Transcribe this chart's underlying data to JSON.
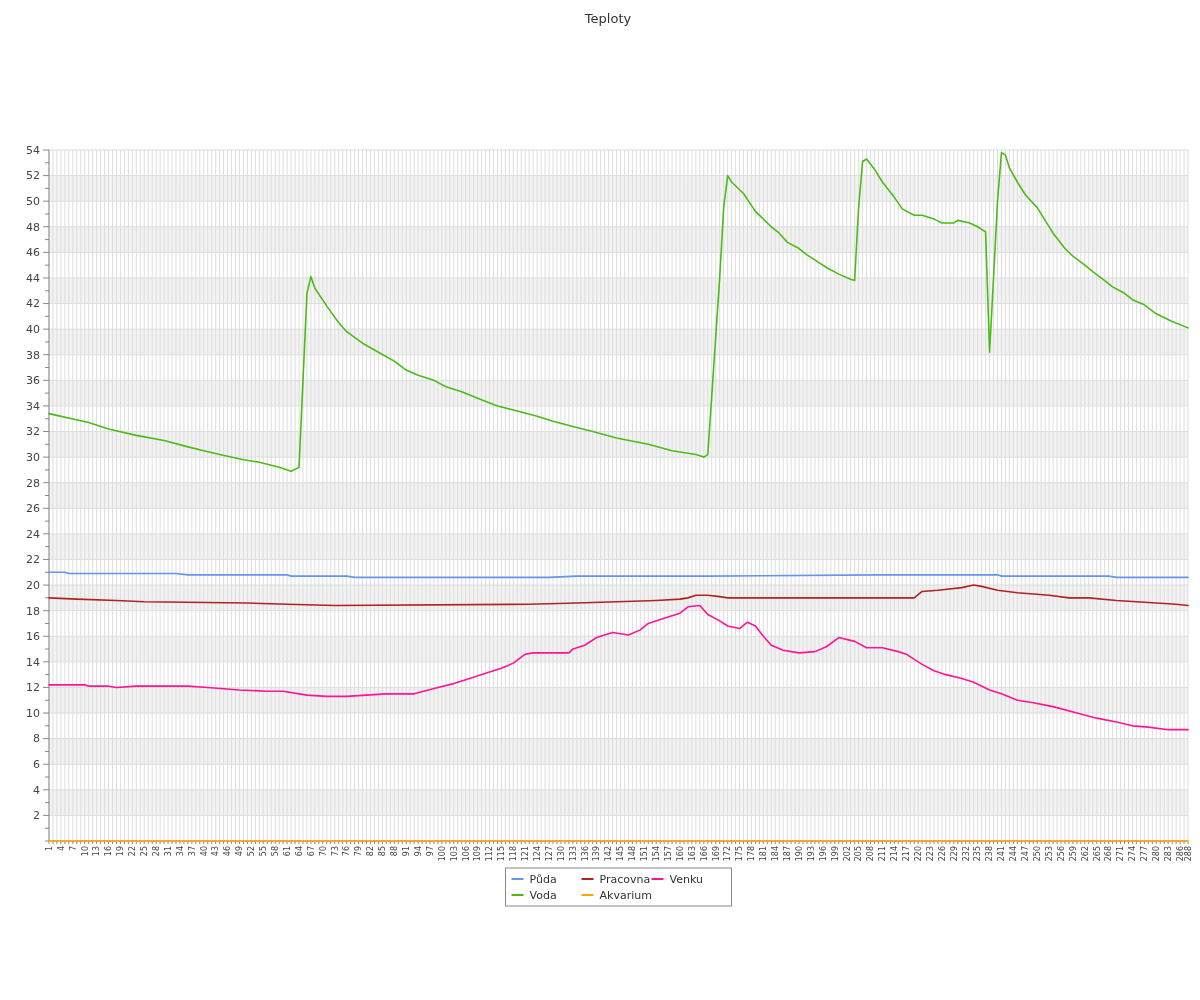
{
  "chart_data": {
    "type": "line",
    "title": "Teploty",
    "grid": true,
    "legend": "bottom",
    "xlim": [
      1,
      288
    ],
    "xticks": [
      1,
      {
        "value": 2,
        "label": null
      },
      {
        "value": 3,
        "label": null
      },
      4,
      {
        "value": 5,
        "label": null
      },
      {
        "value": 6,
        "label": null
      },
      7,
      {
        "value": 8,
        "label": null
      },
      {
        "value": 9,
        "label": null
      },
      10,
      {
        "value": 11,
        "label": null
      },
      {
        "value": 12,
        "label": null
      },
      13,
      {
        "value": 14,
        "label": null
      },
      {
        "value": 15,
        "label": null
      },
      16,
      {
        "value": 17,
        "label": null
      },
      {
        "value": 18,
        "label": null
      },
      19,
      {
        "value": 20,
        "label": null
      },
      {
        "value": 21,
        "label": null
      },
      22,
      {
        "value": 23,
        "label": null
      },
      {
        "value": 24,
        "label": null
      },
      25,
      {
        "value": 26,
        "label": null
      },
      {
        "value": 27,
        "label": null
      },
      28,
      {
        "value": 29,
        "label": null
      },
      {
        "value": 30,
        "label": null
      },
      31,
      {
        "value": 32,
        "label": null
      },
      {
        "value": 33,
        "label": null
      },
      34,
      {
        "value": 35,
        "label": null
      },
      {
        "value": 36,
        "label": null
      },
      37,
      {
        "value": 38,
        "label": null
      },
      {
        "value": 39,
        "label": null
      },
      40,
      {
        "value": 41,
        "label": null
      },
      {
        "value": 42,
        "label": null
      },
      43,
      {
        "value": 44,
        "label": null
      },
      {
        "value": 45,
        "label": null
      },
      46,
      {
        "value": 47,
        "label": null
      },
      {
        "value": 48,
        "label": null
      },
      49,
      {
        "value": 50,
        "label": null
      },
      {
        "value": 51,
        "label": null
      },
      52,
      {
        "value": 53,
        "label": null
      },
      {
        "value": 54,
        "label": null
      },
      55,
      {
        "value": 56,
        "label": null
      },
      {
        "value": 57,
        "label": null
      },
      58,
      {
        "value": 59,
        "label": null
      },
      {
        "value": 60,
        "label": null
      },
      61,
      {
        "value": 62,
        "label": null
      },
      {
        "value": 63,
        "label": null
      },
      64,
      {
        "value": 65,
        "label": null
      },
      {
        "value": 66,
        "label": null
      },
      67,
      {
        "value": 68,
        "label": null
      },
      {
        "value": 69,
        "label": null
      },
      70,
      {
        "value": 71,
        "label": null
      },
      {
        "value": 72,
        "label": null
      },
      73,
      {
        "value": 74,
        "label": null
      },
      {
        "value": 75,
        "label": null
      },
      76,
      {
        "value": 77,
        "label": null
      },
      {
        "value": 78,
        "label": null
      },
      79,
      {
        "value": 80,
        "label": null
      },
      {
        "value": 81,
        "label": null
      },
      82,
      {
        "value": 83,
        "label": null
      },
      {
        "value": 84,
        "label": null
      },
      85,
      {
        "value": 86,
        "label": null
      },
      {
        "value": 87,
        "label": null
      },
      88,
      {
        "value": 89,
        "label": null
      },
      {
        "value": 90,
        "label": null
      },
      91,
      {
        "value": 92,
        "label": null
      },
      {
        "value": 93,
        "label": null
      },
      94,
      {
        "value": 95,
        "label": null
      },
      {
        "value": 96,
        "label": null
      },
      97,
      {
        "value": 98,
        "label": null
      },
      {
        "value": 99,
        "label": null
      },
      100,
      {
        "value": 101,
        "label": null
      },
      {
        "value": 102,
        "label": null
      },
      103,
      {
        "value": 104,
        "label": null
      },
      {
        "value": 105,
        "label": null
      },
      106,
      {
        "value": 107,
        "label": null
      },
      {
        "value": 108,
        "label": null
      },
      109,
      {
        "value": 110,
        "label": null
      },
      {
        "value": 111,
        "label": null
      },
      112,
      {
        "value": 113,
        "label": null
      },
      {
        "value": 114,
        "label": null
      },
      115,
      {
        "value": 116,
        "label": null
      },
      {
        "value": 117,
        "label": null
      },
      118,
      {
        "value": 119,
        "label": null
      },
      {
        "value": 120,
        "label": null
      },
      121,
      {
        "value": 122,
        "label": null
      },
      {
        "value": 123,
        "label": null
      },
      124,
      {
        "value": 125,
        "label": null
      },
      {
        "value": 126,
        "label": null
      },
      127,
      {
        "value": 128,
        "label": null
      },
      {
        "value": 129,
        "label": null
      },
      130,
      {
        "value": 131,
        "label": null
      },
      {
        "value": 132,
        "label": null
      },
      133,
      {
        "value": 134,
        "label": null
      },
      {
        "value": 135,
        "label": null
      },
      136,
      {
        "value": 137,
        "label": null
      },
      {
        "value": 138,
        "label": null
      },
      139,
      {
        "value": 140,
        "label": null
      },
      {
        "value": 141,
        "label": null
      },
      142,
      {
        "value": 143,
        "label": null
      },
      {
        "value": 144,
        "label": null
      },
      145,
      {
        "value": 146,
        "label": null
      },
      {
        "value": 147,
        "label": null
      },
      148,
      {
        "value": 149,
        "label": null
      },
      {
        "value": 150,
        "label": null
      },
      151,
      {
        "value": 152,
        "label": null
      },
      {
        "value": 153,
        "label": null
      },
      154,
      {
        "value": 155,
        "label": null
      },
      {
        "value": 156,
        "label": null
      },
      157,
      {
        "value": 158,
        "label": null
      },
      {
        "value": 159,
        "label": null
      },
      160,
      {
        "value": 161,
        "label": null
      },
      {
        "value": 162,
        "label": null
      },
      163,
      {
        "value": 164,
        "label": null
      },
      {
        "value": 165,
        "label": null
      },
      166,
      {
        "value": 167,
        "label": null
      },
      {
        "value": 168,
        "label": null
      },
      169,
      {
        "value": 170,
        "label": null
      },
      {
        "value": 171,
        "label": null
      },
      172,
      {
        "value": 173,
        "label": null
      },
      {
        "value": 174,
        "label": null
      },
      175,
      {
        "value": 176,
        "label": null
      },
      {
        "value": 177,
        "label": null
      },
      178,
      {
        "value": 179,
        "label": null
      },
      {
        "value": 180,
        "label": null
      },
      181,
      {
        "value": 182,
        "label": null
      },
      {
        "value": 183,
        "label": null
      },
      184,
      {
        "value": 185,
        "label": null
      },
      {
        "value": 186,
        "label": null
      },
      187,
      {
        "value": 188,
        "label": null
      },
      {
        "value": 189,
        "label": null
      },
      190,
      {
        "value": 191,
        "label": null
      },
      {
        "value": 192,
        "label": null
      },
      193,
      {
        "value": 194,
        "label": null
      },
      {
        "value": 195,
        "label": null
      },
      196,
      {
        "value": 197,
        "label": null
      },
      {
        "value": 198,
        "label": null
      },
      199,
      {
        "value": 200,
        "label": null
      },
      {
        "value": 201,
        "label": null
      },
      202,
      {
        "value": 203,
        "label": null
      },
      {
        "value": 204,
        "label": null
      },
      205,
      {
        "value": 206,
        "label": null
      },
      {
        "value": 207,
        "label": null
      },
      208,
      {
        "value": 209,
        "label": null
      },
      {
        "value": 210,
        "label": null
      },
      211,
      {
        "value": 212,
        "label": null
      },
      {
        "value": 213,
        "label": null
      },
      214,
      {
        "value": 215,
        "label": null
      },
      {
        "value": 216,
        "label": null
      },
      217,
      {
        "value": 218,
        "label": null
      },
      {
        "value": 219,
        "label": null
      },
      220,
      {
        "value": 221,
        "label": null
      },
      {
        "value": 222,
        "label": null
      },
      223,
      {
        "value": 224,
        "label": null
      },
      {
        "value": 225,
        "label": null
      },
      226,
      {
        "value": 227,
        "label": null
      },
      {
        "value": 228,
        "label": null
      },
      229,
      {
        "value": 230,
        "label": null
      },
      {
        "value": 231,
        "label": null
      },
      232,
      {
        "value": 233,
        "label": null
      },
      {
        "value": 234,
        "label": null
      },
      235,
      {
        "value": 236,
        "label": null
      },
      {
        "value": 237,
        "label": null
      },
      238,
      {
        "value": 239,
        "label": null
      },
      {
        "value": 240,
        "label": null
      },
      241,
      {
        "value": 242,
        "label": null
      },
      {
        "value": 243,
        "label": null
      },
      244,
      {
        "value": 245,
        "label": null
      },
      {
        "value": 246,
        "label": null
      },
      247,
      {
        "value": 248,
        "label": null
      },
      {
        "value": 249,
        "label": null
      },
      250,
      {
        "value": 251,
        "label": null
      },
      {
        "value": 252,
        "label": null
      },
      253,
      {
        "value": 254,
        "label": null
      },
      {
        "value": 255,
        "label": null
      },
      256,
      {
        "value": 257,
        "label": null
      },
      {
        "value": 258,
        "label": null
      },
      259,
      {
        "value": 260,
        "label": null
      },
      {
        "value": 261,
        "label": null
      },
      262,
      {
        "value": 263,
        "label": null
      },
      {
        "value": 264,
        "label": null
      },
      265,
      {
        "value": 266,
        "label": null
      },
      {
        "value": 267,
        "label": null
      },
      268,
      {
        "value": 269,
        "label": null
      },
      {
        "value": 270,
        "label": null
      },
      271,
      {
        "value": 272,
        "label": null
      },
      {
        "value": 273,
        "label": null
      },
      274,
      {
        "value": 275,
        "label": null
      },
      {
        "value": 276,
        "label": null
      },
      277,
      {
        "value": 278,
        "label": null
      },
      {
        "value": 279,
        "label": null
      },
      280,
      {
        "value": 281,
        "label": null
      },
      {
        "value": 282,
        "label": null
      },
      283,
      {
        "value": 284,
        "label": null
      },
      {
        "value": 285,
        "label": null
      },
      286,
      {
        "value": 287,
        "label": null
      },
      288
    ],
    "ylim": [
      0,
      54
    ],
    "yticks": [
      {
        "value": 0,
        "label": null
      },
      {
        "value": 1,
        "label": null
      },
      2,
      {
        "value": 3,
        "label": null
      },
      4,
      {
        "value": 5,
        "label": null
      },
      6,
      {
        "value": 7,
        "label": null
      },
      8,
      {
        "value": 9,
        "label": null
      },
      10,
      {
        "value": 11,
        "label": null
      },
      12,
      {
        "value": 13,
        "label": null
      },
      14,
      {
        "value": 15,
        "label": null
      },
      16,
      {
        "value": 17,
        "label": null
      },
      18,
      {
        "value": 19,
        "label": null
      },
      20,
      {
        "value": 21,
        "label": null
      },
      22,
      {
        "value": 23,
        "label": null
      },
      24,
      {
        "value": 25,
        "label": null
      },
      26,
      {
        "value": 27,
        "label": null
      },
      28,
      {
        "value": 29,
        "label": null
      },
      30,
      {
        "value": 31,
        "label": null
      },
      32,
      {
        "value": 33,
        "label": null
      },
      34,
      {
        "value": 35,
        "label": null
      },
      36,
      {
        "value": 37,
        "label": null
      },
      38,
      {
        "value": 39,
        "label": null
      },
      40,
      {
        "value": 41,
        "label": null
      },
      42,
      {
        "value": 43,
        "label": null
      },
      44,
      {
        "value": 45,
        "label": null
      },
      46,
      {
        "value": 47,
        "label": null
      },
      48,
      {
        "value": 49,
        "label": null
      },
      50,
      {
        "value": 51,
        "label": null
      },
      52,
      {
        "value": 53,
        "label": null
      },
      54
    ],
    "series": [
      {
        "name": "Půda",
        "color": "#6495ed",
        "x": [
          1,
          5,
          6,
          33,
          36,
          61,
          62,
          76,
          78,
          127,
          134,
          167,
          210,
          240,
          241,
          268,
          270,
          288
        ],
        "values": [
          21.0,
          21.0,
          20.9,
          20.9,
          20.8,
          20.8,
          20.7,
          20.7,
          20.6,
          20.6,
          20.7,
          20.7,
          20.8,
          20.8,
          20.7,
          20.7,
          20.6,
          20.6
        ]
      },
      {
        "name": "Voda",
        "color": "#4cbb17",
        "x": [
          1,
          11,
          16,
          23,
          30,
          36,
          40,
          44,
          50,
          54,
          59,
          62,
          64,
          66,
          67,
          68,
          71,
          74,
          76,
          80,
          84,
          88,
          91,
          94,
          98,
          101,
          105,
          109,
          114,
          119,
          124,
          128,
          133,
          138,
          144,
          152,
          158,
          164,
          166,
          167,
          170,
          171,
          172,
          173,
          176,
          179,
          183,
          185,
          187,
          190,
          192,
          195,
          197,
          200,
          203,
          204,
          205,
          206,
          207,
          209,
          211,
          214,
          216,
          219,
          221,
          224,
          226,
          229,
          230,
          233,
          235,
          237,
          238,
          239,
          240,
          241,
          242,
          243,
          245,
          247,
          250,
          252,
          254,
          257,
          259,
          262,
          264,
          267,
          269,
          272,
          274,
          277,
          280,
          284,
          288
        ],
        "values": [
          33.4,
          32.7,
          32.2,
          31.7,
          31.3,
          30.8,
          30.5,
          30.2,
          29.8,
          29.6,
          29.2,
          28.9,
          29.2,
          42.8,
          44.1,
          43.2,
          41.8,
          40.5,
          39.8,
          38.9,
          38.2,
          37.5,
          36.8,
          36.4,
          36.0,
          35.5,
          35.1,
          34.6,
          34.0,
          33.6,
          33.2,
          32.8,
          32.4,
          32.0,
          31.5,
          31.0,
          30.5,
          30.2,
          30.0,
          30.2,
          44.0,
          49.5,
          52.0,
          51.5,
          50.6,
          49.2,
          48.0,
          47.5,
          46.8,
          46.3,
          45.8,
          45.2,
          44.8,
          44.3,
          43.9,
          43.8,
          49.5,
          53.1,
          53.3,
          52.5,
          51.5,
          50.3,
          49.4,
          48.9,
          48.9,
          48.6,
          48.3,
          48.3,
          48.5,
          48.3,
          48.0,
          47.6,
          38.2,
          44.0,
          50.0,
          53.8,
          53.6,
          52.6,
          51.5,
          50.5,
          49.5,
          48.5,
          47.5,
          46.3,
          45.7,
          45.0,
          44.5,
          43.8,
          43.3,
          42.8,
          42.3,
          41.9,
          41.2,
          40.6,
          40.1
        ]
      },
      {
        "name": "Pracovna",
        "color": "#b22222",
        "x": [
          1,
          8,
          18,
          25,
          51,
          61,
          73,
          122,
          134,
          144,
          154,
          160,
          162,
          164,
          167,
          170,
          172,
          219,
          221,
          225,
          231,
          234,
          236,
          240,
          245,
          253,
          258,
          263,
          270,
          275,
          285,
          288
        ],
        "values": [
          19.0,
          18.9,
          18.8,
          18.7,
          18.6,
          18.5,
          18.4,
          18.5,
          18.6,
          18.7,
          18.8,
          18.9,
          19.0,
          19.2,
          19.2,
          19.1,
          19.0,
          19.0,
          19.5,
          19.6,
          19.8,
          20.0,
          19.9,
          19.6,
          19.4,
          19.2,
          19.0,
          19.0,
          18.8,
          18.7,
          18.5,
          18.4
        ]
      },
      {
        "name": "Akvarium",
        "color": "#ffa500",
        "x": [
          1,
          288
        ],
        "values": [
          0,
          0
        ]
      },
      {
        "name": "Venku",
        "color": "#ff1493",
        "x": [
          1,
          10,
          11,
          16,
          18,
          23,
          36,
          41,
          49,
          56,
          60,
          66,
          71,
          76,
          81,
          86,
          93,
          99,
          103,
          107,
          112,
          115,
          118,
          121,
          123,
          132,
          133,
          136,
          139,
          143,
          147,
          150,
          152,
          156,
          160,
          162,
          165,
          167,
          170,
          172,
          175,
          177,
          179,
          181,
          183,
          186,
          190,
          194,
          197,
          200,
          204,
          207,
          211,
          215,
          217,
          221,
          224,
          227,
          231,
          234,
          238,
          241,
          245,
          249,
          254,
          260,
          265,
          270,
          274,
          278,
          283,
          288
        ],
        "values": [
          12.2,
          12.2,
          12.1,
          12.1,
          12.0,
          12.1,
          12.1,
          12.0,
          11.8,
          11.7,
          11.7,
          11.4,
          11.3,
          11.3,
          11.4,
          11.5,
          11.5,
          12.0,
          12.3,
          12.7,
          13.2,
          13.5,
          13.9,
          14.6,
          14.7,
          14.7,
          15.0,
          15.3,
          15.9,
          16.3,
          16.1,
          16.5,
          17.0,
          17.4,
          17.8,
          18.3,
          18.4,
          17.7,
          17.2,
          16.8,
          16.6,
          17.1,
          16.8,
          16.0,
          15.3,
          14.9,
          14.7,
          14.8,
          15.2,
          15.9,
          15.6,
          15.1,
          15.1,
          14.8,
          14.6,
          13.8,
          13.3,
          13.0,
          12.7,
          12.4,
          11.8,
          11.5,
          11.0,
          10.8,
          10.5,
          10.0,
          9.6,
          9.3,
          9.0,
          8.9,
          8.7,
          8.7
        ]
      }
    ]
  }
}
